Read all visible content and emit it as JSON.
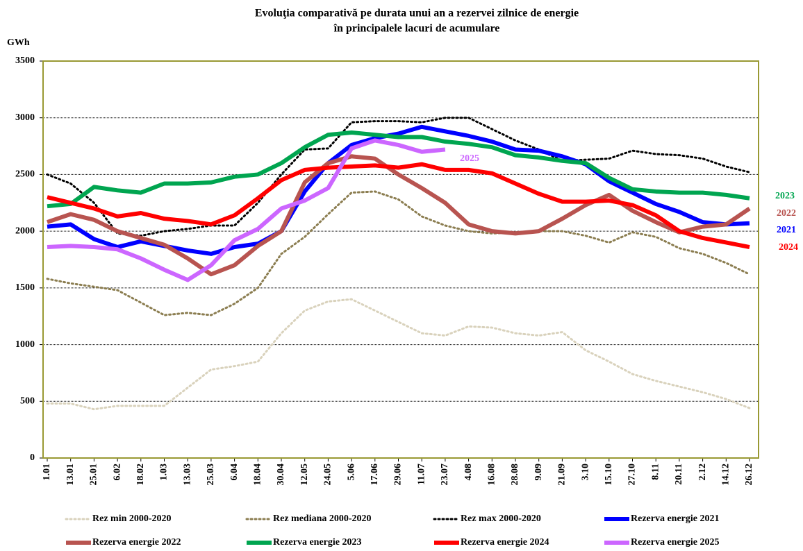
{
  "chart_data": {
    "type": "line",
    "title": "Evoluţia comparativă pe durata unui an a rezervei zilnice de energie",
    "subtitle": "în principalele lacuri de acumulare",
    "y_label": "GWh",
    "categories": [
      "1.01",
      "13.01",
      "25.01",
      "6.02",
      "18.02",
      "1.03",
      "13.03",
      "25.03",
      "6.04",
      "18.04",
      "30.04",
      "12.05",
      "24.05",
      "5.06",
      "17.06",
      "29.06",
      "11.07",
      "23.07",
      "4.08",
      "16.08",
      "28.08",
      "9.09",
      "21.09",
      "3.10",
      "15.10",
      "27.10",
      "8.11",
      "20.11",
      "2.12",
      "14.12",
      "26.12"
    ],
    "ylim": [
      0,
      3500
    ],
    "yticks": [
      0,
      500,
      1000,
      1500,
      2000,
      2500,
      3000,
      3500
    ],
    "grid": true,
    "series": [
      {
        "name": "Rez min 2000-2020",
        "color": "#d9d2bc",
        "style": "dotted",
        "values": [
          480,
          480,
          430,
          460,
          460,
          460,
          620,
          780,
          810,
          850,
          1100,
          1300,
          1380,
          1400,
          1300,
          1200,
          1100,
          1080,
          1160,
          1150,
          1100,
          1080,
          1110,
          950,
          850,
          740,
          680,
          630,
          580,
          520,
          440
        ]
      },
      {
        "name": "Rez mediana 2000-2020",
        "color": "#8b7d50",
        "style": "dotted",
        "values": [
          1580,
          1540,
          1510,
          1480,
          1370,
          1260,
          1280,
          1260,
          1360,
          1500,
          1800,
          1950,
          2150,
          2340,
          2350,
          2280,
          2130,
          2050,
          2000,
          1980,
          1990,
          2000,
          2000,
          1960,
          1900,
          1990,
          1950,
          1850,
          1800,
          1720,
          1620
        ]
      },
      {
        "name": "Rez max 2000-2020",
        "color": "#000000",
        "style": "dotted",
        "values": [
          2500,
          2420,
          2250,
          1980,
          1960,
          2000,
          2020,
          2050,
          2050,
          2250,
          2500,
          2720,
          2730,
          2960,
          2970,
          2970,
          2960,
          3000,
          3000,
          2900,
          2800,
          2720,
          2620,
          2630,
          2640,
          2710,
          2680,
          2670,
          2640,
          2570,
          2520
        ]
      },
      {
        "name": "Rezerva energie 2021",
        "color": "#0000ff",
        "style": "solid",
        "label": "2021",
        "values": [
          2040,
          2060,
          1930,
          1860,
          1910,
          1870,
          1830,
          1800,
          1860,
          1890,
          2000,
          2350,
          2600,
          2760,
          2820,
          2860,
          2920,
          2880,
          2840,
          2790,
          2720,
          2710,
          2660,
          2590,
          2440,
          2340,
          2240,
          2170,
          2080,
          2060,
          2070
        ]
      },
      {
        "name": "Rezerva energie 2022",
        "color": "#b85450",
        "style": "solid",
        "label": "2022",
        "values": [
          2080,
          2150,
          2100,
          2000,
          1940,
          1880,
          1760,
          1620,
          1700,
          1870,
          2000,
          2430,
          2600,
          2660,
          2640,
          2500,
          2380,
          2250,
          2060,
          2000,
          1980,
          2000,
          2110,
          2230,
          2320,
          2180,
          2080,
          1990,
          2040,
          2060,
          2200
        ]
      },
      {
        "name": "Rezerva energie 2023",
        "color": "#00a550",
        "style": "solid",
        "label": "2023",
        "values": [
          2220,
          2240,
          2390,
          2360,
          2340,
          2420,
          2420,
          2430,
          2480,
          2500,
          2600,
          2740,
          2850,
          2870,
          2850,
          2830,
          2830,
          2790,
          2770,
          2740,
          2670,
          2650,
          2620,
          2600,
          2470,
          2370,
          2350,
          2340,
          2340,
          2320,
          2290
        ]
      },
      {
        "name": "Rezerva energie 2024",
        "color": "#ff0000",
        "style": "solid",
        "label": "2024",
        "values": [
          2300,
          2250,
          2200,
          2130,
          2160,
          2110,
          2090,
          2060,
          2140,
          2290,
          2450,
          2540,
          2560,
          2570,
          2580,
          2560,
          2590,
          2540,
          2540,
          2510,
          2420,
          2330,
          2260,
          2260,
          2270,
          2230,
          2140,
          2000,
          1940,
          1900,
          1860
        ]
      },
      {
        "name": "Rezerva energie 2025",
        "color": "#cc66ff",
        "style": "solid",
        "label": "2025",
        "values": [
          1860,
          1870,
          1860,
          1840,
          1760,
          1660,
          1570,
          1700,
          1920,
          2020,
          2200,
          2270,
          2380,
          2730,
          2800,
          2760,
          2700,
          2720,
          null,
          null,
          null,
          null,
          null,
          null,
          null,
          null,
          null,
          null,
          null,
          null,
          null
        ]
      }
    ]
  }
}
